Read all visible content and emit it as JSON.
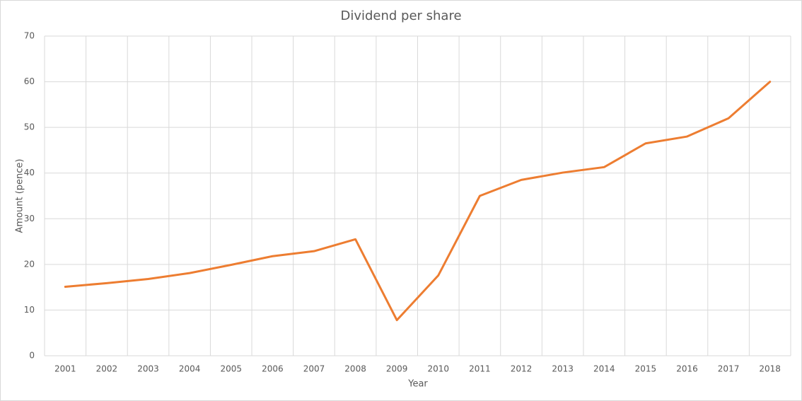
{
  "chart_data": {
    "type": "line",
    "title": "Dividend per share",
    "x_label": "Year",
    "y_label": "Amount (pence)",
    "categories": [
      "2001",
      "2002",
      "2003",
      "2004",
      "2005",
      "2006",
      "2007",
      "2008",
      "2009",
      "2010",
      "2011",
      "2012",
      "2013",
      "2014",
      "2015",
      "2016",
      "2017",
      "2018"
    ],
    "series": [
      {
        "name": "Dividend per share",
        "color": "#ed7d31",
        "values": [
          15.1,
          15.9,
          16.8,
          18.1,
          19.9,
          21.8,
          22.9,
          25.5,
          7.8,
          17.6,
          35.0,
          38.5,
          40.1,
          41.3,
          46.5,
          48.0,
          52.0,
          60.0
        ]
      }
    ],
    "ylim": [
      0,
      70
    ],
    "yticks": [
      0,
      10,
      20,
      30,
      40,
      50,
      60,
      70
    ],
    "grid": true
  }
}
